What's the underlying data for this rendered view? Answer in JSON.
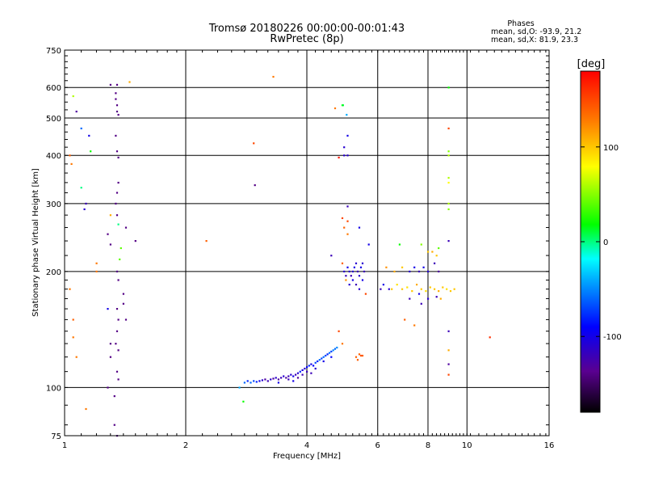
{
  "chart_data": {
    "type": "scatter",
    "title": "Tromsø 20180226 00:00:00-00:01:43",
    "subtitle": "RwPretec (8p)",
    "stats": {
      "header": "Phases",
      "line_o": "mean, sd,O: -93.9, 21.2",
      "line_x": "mean, sd,X:  81.9, 23.3"
    },
    "xlabel": "Frequency [MHz]",
    "ylabel": "Stationary phase Virtual Height [km]",
    "x_scale": "log",
    "y_scale": "log",
    "xlim": [
      1,
      16
    ],
    "ylim": [
      75,
      750
    ],
    "x_ticks": [
      1,
      2,
      4,
      6,
      8,
      10,
      16
    ],
    "y_ticks": [
      75,
      100,
      200,
      300,
      400,
      500,
      600,
      750
    ],
    "grid": true,
    "colorbar": {
      "label": "[deg]",
      "range": [
        -180,
        180
      ],
      "ticks": [
        100,
        0,
        -100
      ]
    },
    "series": [
      {
        "points": [
          [
            1.07,
            520,
            -130
          ],
          [
            1.05,
            570,
            60
          ],
          [
            1.1,
            470,
            -60
          ],
          [
            1.15,
            450,
            -100
          ],
          [
            1.16,
            410,
            20
          ],
          [
            1.04,
            380,
            130
          ],
          [
            1.03,
            400,
            140
          ],
          [
            1.1,
            330,
            0
          ],
          [
            1.13,
            300,
            -120
          ],
          [
            1.12,
            290,
            -110
          ],
          [
            1.3,
            610,
            -140
          ],
          [
            1.35,
            610,
            -140
          ],
          [
            1.34,
            580,
            -140
          ],
          [
            1.34,
            560,
            -140
          ],
          [
            1.35,
            540,
            -140
          ],
          [
            1.35,
            520,
            -140
          ],
          [
            1.36,
            510,
            -140
          ],
          [
            1.34,
            450,
            -140
          ],
          [
            1.35,
            410,
            -140
          ],
          [
            1.36,
            395,
            -140
          ],
          [
            1.36,
            340,
            -140
          ],
          [
            1.35,
            320,
            -140
          ],
          [
            1.34,
            300,
            -140
          ],
          [
            1.35,
            280,
            -140
          ],
          [
            1.36,
            265,
            0
          ],
          [
            1.42,
            260,
            -140
          ],
          [
            1.3,
            280,
            110
          ],
          [
            1.28,
            250,
            -140
          ],
          [
            1.3,
            235,
            -140
          ],
          [
            1.35,
            200,
            -140
          ],
          [
            1.36,
            190,
            -140
          ],
          [
            1.4,
            175,
            -140
          ],
          [
            1.35,
            160,
            -140
          ],
          [
            1.36,
            150,
            -140
          ],
          [
            1.35,
            140,
            -140
          ],
          [
            1.34,
            130,
            -140
          ],
          [
            1.36,
            125,
            -140
          ],
          [
            1.3,
            130,
            -140
          ],
          [
            1.3,
            120,
            -140
          ],
          [
            1.35,
            110,
            -140
          ],
          [
            1.36,
            105,
            -140
          ],
          [
            1.42,
            150,
            -140
          ],
          [
            1.4,
            165,
            -140
          ],
          [
            1.28,
            160,
            -100
          ],
          [
            1.45,
            620,
            110
          ],
          [
            1.5,
            240,
            -140
          ],
          [
            1.2,
            210,
            130
          ],
          [
            1.2,
            200,
            130
          ],
          [
            1.03,
            180,
            130
          ],
          [
            1.05,
            150,
            140
          ],
          [
            1.05,
            135,
            130
          ],
          [
            1.07,
            120,
            130
          ],
          [
            1.13,
            88,
            130
          ],
          [
            1.28,
            100,
            -140
          ],
          [
            1.33,
            95,
            -140
          ],
          [
            1.35,
            75,
            -140
          ],
          [
            1.33,
            80,
            -140
          ],
          [
            1.38,
            230,
            40
          ],
          [
            1.37,
            215,
            40
          ],
          [
            2.25,
            240,
            140
          ],
          [
            2.95,
            430,
            150
          ],
          [
            2.97,
            335,
            -140
          ],
          [
            3.3,
            640,
            130
          ],
          [
            2.78,
            92,
            20
          ],
          [
            2.72,
            100,
            -40
          ],
          [
            2.8,
            103,
            -60
          ],
          [
            2.85,
            104,
            -80
          ],
          [
            2.9,
            103,
            -60
          ],
          [
            2.95,
            104,
            -70
          ],
          [
            3.0,
            103.5,
            -80
          ],
          [
            3.05,
            104,
            -100
          ],
          [
            3.1,
            104.5,
            -110
          ],
          [
            3.15,
            105,
            -130
          ],
          [
            3.2,
            104,
            -120
          ],
          [
            3.25,
            105,
            -110
          ],
          [
            3.3,
            105.5,
            -130
          ],
          [
            3.35,
            106,
            -110
          ],
          [
            3.4,
            105,
            -130
          ],
          [
            3.45,
            106,
            -120
          ],
          [
            3.5,
            107,
            -110
          ],
          [
            3.55,
            106,
            -130
          ],
          [
            3.6,
            107,
            -120
          ],
          [
            3.65,
            108,
            -110
          ],
          [
            3.7,
            107,
            -100
          ],
          [
            3.75,
            108,
            -120
          ],
          [
            3.8,
            109,
            -110
          ],
          [
            3.85,
            110,
            -80
          ],
          [
            3.9,
            111,
            -100
          ],
          [
            3.95,
            112,
            -110
          ],
          [
            4.0,
            113,
            -90
          ],
          [
            4.05,
            114,
            -80
          ],
          [
            4.1,
            115,
            -100
          ],
          [
            4.15,
            114,
            -90
          ],
          [
            4.2,
            116,
            -70
          ],
          [
            4.25,
            117,
            -80
          ],
          [
            4.3,
            118,
            -60
          ],
          [
            4.35,
            119,
            -70
          ],
          [
            4.4,
            120,
            -60
          ],
          [
            4.45,
            121,
            -70
          ],
          [
            4.5,
            122,
            -80
          ],
          [
            4.55,
            123,
            -60
          ],
          [
            4.6,
            124,
            -70
          ],
          [
            4.65,
            125,
            -50
          ],
          [
            4.7,
            126,
            -60
          ],
          [
            4.75,
            127,
            -50
          ],
          [
            3.6,
            105,
            -120
          ],
          [
            3.7,
            104,
            -100
          ],
          [
            3.9,
            108,
            -120
          ],
          [
            4.0,
            110,
            -120
          ],
          [
            4.2,
            112,
            -110
          ],
          [
            4.4,
            117,
            -100
          ],
          [
            4.6,
            120,
            -90
          ],
          [
            3.4,
            103,
            -100
          ],
          [
            3.8,
            106,
            -130
          ],
          [
            4.1,
            109,
            -120
          ],
          [
            5.3,
            120,
            140
          ],
          [
            5.4,
            122,
            140
          ],
          [
            5.45,
            121,
            145
          ],
          [
            5.5,
            121,
            140
          ],
          [
            5.35,
            118,
            140
          ],
          [
            4.9,
            130,
            130
          ],
          [
            4.8,
            140,
            150
          ],
          [
            4.6,
            220,
            -120
          ],
          [
            4.9,
            540,
            20
          ],
          [
            4.92,
            540,
            10
          ],
          [
            5.02,
            510,
            -40
          ],
          [
            4.7,
            530,
            130
          ],
          [
            5.05,
            450,
            -100
          ],
          [
            4.95,
            420,
            -110
          ],
          [
            4.95,
            400,
            -110
          ],
          [
            5.05,
            400,
            -110
          ],
          [
            4.8,
            395,
            170
          ],
          [
            5.05,
            295,
            -120
          ],
          [
            4.9,
            275,
            150
          ],
          [
            5.05,
            270,
            150
          ],
          [
            4.95,
            260,
            140
          ],
          [
            5.05,
            250,
            130
          ],
          [
            5.4,
            260,
            -100
          ],
          [
            5.7,
            235,
            -100
          ],
          [
            4.95,
            200,
            -110
          ],
          [
            5.0,
            195,
            -120
          ],
          [
            5.05,
            205,
            -100
          ],
          [
            5.1,
            200,
            -110
          ],
          [
            5.15,
            195,
            -120
          ],
          [
            5.2,
            200,
            -110
          ],
          [
            5.25,
            205,
            -100
          ],
          [
            5.3,
            210,
            -110
          ],
          [
            5.35,
            200,
            -120
          ],
          [
            5.4,
            195,
            -110
          ],
          [
            5.45,
            205,
            -100
          ],
          [
            5.5,
            210,
            -110
          ],
          [
            5.55,
            200,
            -120
          ],
          [
            4.9,
            210,
            140
          ],
          [
            5.0,
            190,
            120
          ],
          [
            5.1,
            185,
            -110
          ],
          [
            5.2,
            190,
            -100
          ],
          [
            5.3,
            185,
            -120
          ],
          [
            5.4,
            180,
            -110
          ],
          [
            5.5,
            190,
            -100
          ],
          [
            5.6,
            175,
            150
          ],
          [
            6.1,
            180,
            -120
          ],
          [
            6.2,
            185,
            -100
          ],
          [
            6.4,
            180,
            -110
          ],
          [
            6.3,
            205,
            120
          ],
          [
            6.6,
            200,
            110
          ],
          [
            6.9,
            205,
            100
          ],
          [
            7.2,
            200,
            -110
          ],
          [
            7.4,
            205,
            -100
          ],
          [
            7.6,
            200,
            -120
          ],
          [
            7.8,
            205,
            -100
          ],
          [
            8.0,
            200,
            -110
          ],
          [
            8.3,
            210,
            -120
          ],
          [
            8.5,
            200,
            -130
          ],
          [
            6.8,
            235,
            20
          ],
          [
            7.7,
            235,
            50
          ],
          [
            8.0,
            225,
            100
          ],
          [
            8.2,
            225,
            110
          ],
          [
            8.4,
            220,
            100
          ],
          [
            8.5,
            230,
            40
          ],
          [
            6.5,
            180,
            100
          ],
          [
            6.7,
            185,
            90
          ],
          [
            6.9,
            180,
            100
          ],
          [
            7.1,
            182,
            90
          ],
          [
            7.3,
            178,
            100
          ],
          [
            7.5,
            185,
            110
          ],
          [
            7.7,
            180,
            100
          ],
          [
            7.9,
            178,
            90
          ],
          [
            8.1,
            182,
            100
          ],
          [
            8.3,
            180,
            100
          ],
          [
            8.5,
            178,
            110
          ],
          [
            8.7,
            182,
            100
          ],
          [
            8.9,
            180,
            90
          ],
          [
            9.1,
            178,
            100
          ],
          [
            9.3,
            180,
            100
          ],
          [
            7.2,
            170,
            -120
          ],
          [
            7.6,
            175,
            -100
          ],
          [
            8.0,
            170,
            -110
          ],
          [
            8.4,
            172,
            -120
          ],
          [
            7.0,
            150,
            140
          ],
          [
            7.4,
            145,
            130
          ],
          [
            7.7,
            165,
            -120
          ],
          [
            8.6,
            170,
            110
          ],
          [
            9.0,
            600,
            20
          ],
          [
            9.0,
            470,
            150
          ],
          [
            9.0,
            410,
            50
          ],
          [
            9.0,
            400,
            60
          ],
          [
            9.0,
            350,
            60
          ],
          [
            9.0,
            340,
            80
          ],
          [
            9.0,
            300,
            60
          ],
          [
            9.0,
            290,
            50
          ],
          [
            9.0,
            240,
            -120
          ],
          [
            9.0,
            140,
            -120
          ],
          [
            9.0,
            125,
            110
          ],
          [
            9.0,
            115,
            -130
          ],
          [
            9.0,
            108,
            150
          ],
          [
            11.4,
            135,
            160
          ]
        ]
      }
    ]
  }
}
